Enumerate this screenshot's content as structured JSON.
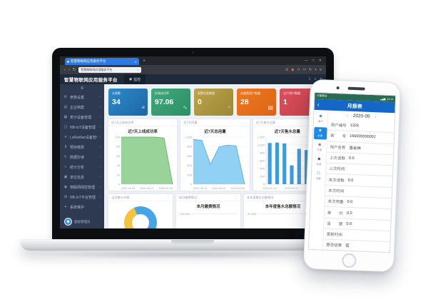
{
  "browser": {
    "tab_title": "智慧物联网应用服务平台",
    "tab_close_glyph": "✕",
    "new_tab_glyph": "+",
    "window_controls": [
      {
        "name": "minimize-icon",
        "glyph": "—"
      },
      {
        "name": "maximize-icon",
        "glyph": "□"
      },
      {
        "name": "close-icon",
        "glyph": "✕"
      }
    ],
    "nav_back": "‹",
    "nav_forward": "›",
    "nav_refresh": "↻",
    "address_text": "智慧物联网应用服务平台",
    "address_star": "☆",
    "toolbar_icons": [
      {
        "name": "search-icon",
        "glyph": "⊙",
        "color": "#b9bcc2"
      },
      {
        "name": "extension-icon",
        "glyph": "◉",
        "color": "#ff7a2f"
      },
      {
        "name": "favorites-icon",
        "glyph": "✩",
        "color": "#b9bcc2"
      },
      {
        "name": "clip-icon",
        "glyph": "✂",
        "color": "#b9bcc2"
      },
      {
        "name": "history-icon",
        "glyph": "↻",
        "color": "#b9bcc2"
      },
      {
        "name": "add-icon",
        "glyph": "+",
        "color": "#b9bcc2"
      },
      {
        "name": "menu-icon",
        "glyph": "≡",
        "color": "#b9bcc2"
      }
    ]
  },
  "app_header": {
    "title": "智慧物联网应用服务平台",
    "chip_icon": "▣",
    "chip_label": "监控",
    "right_icons": [
      {
        "name": "download-icon",
        "glyph": "↧"
      },
      {
        "name": "chevron-down-icon",
        "glyph": "∨"
      },
      {
        "name": "close-icon",
        "glyph": "✕"
      }
    ]
  },
  "sidebar": {
    "collapse_glyph": "≡",
    "arrow_glyph": "‹",
    "items": [
      {
        "label": "参数设置",
        "glyph": "⚙",
        "icon_name": "gear-icon"
      },
      {
        "label": "企业档案",
        "glyph": "▤",
        "icon_name": "folder-icon"
      },
      {
        "label": "表计设备管理",
        "glyph": "▦",
        "icon_name": "meter-icon"
      },
      {
        "label": "NB-IoT设备管理",
        "glyph": "◫",
        "icon_name": "device-icon"
      },
      {
        "label": "LoRaWan设备管理",
        "glyph": "≋",
        "icon_name": "signal-icon"
      },
      {
        "label": "预存缴费",
        "glyph": "$",
        "icon_name": "payment-icon"
      },
      {
        "label": "数据抄读",
        "glyph": "↻",
        "icon_name": "read-data-icon"
      },
      {
        "label": "统计分析",
        "glyph": "∿",
        "icon_name": "chart-icon"
      },
      {
        "label": "单位信息",
        "glyph": "▣",
        "icon_name": "org-icon"
      },
      {
        "label": "物联网阀控管理",
        "glyph": "◉",
        "icon_name": "valve-icon"
      },
      {
        "label": "NB-IoT平台管理",
        "glyph": "⊞",
        "icon_name": "platform-icon"
      },
      {
        "label": "系统维护",
        "glyph": "✦",
        "icon_name": "maintenance-icon"
      }
    ],
    "user_name": "超级管理员",
    "user_glyph": "☻"
  },
  "stat_cards": [
    {
      "label": "水表数",
      "value": "34",
      "bg": "linear-gradient(135deg,#2e8ac9,#1d66a6)",
      "glyph": "≡",
      "icon_name": "list-icon"
    },
    {
      "label": "抄表成功率",
      "value": "97.06",
      "bg": "linear-gradient(135deg,#3fa87c,#2c8f65)",
      "glyph": "∿",
      "icon_name": "pulse-icon"
    },
    {
      "label": "报警信息数量",
      "value": "0",
      "bg": "linear-gradient(135deg,#bca44a,#9b8836)",
      "glyph": "◔",
      "icon_name": "clock-icon"
    },
    {
      "label": "未缴费用户数量",
      "value": "28",
      "bg": "linear-gradient(135deg,#ec7a21,#dd6314)",
      "glyph": "▤",
      "icon_name": "bill-icon"
    },
    {
      "label": "立户用户数量",
      "value": "1",
      "bg": "linear-gradient(135deg,#d8505a,#c9404e)",
      "glyph": "☻",
      "icon_name": "user-icon"
    }
  ],
  "chart_data": [
    {
      "type": "area",
      "panel_header": "近7天上线成功率",
      "title": "近7天上线成功率",
      "x": [
        "2020-09-24",
        "2020-09-25",
        "2020-09-26",
        "2020-09-27",
        "2020-09-28",
        "2020-09-29",
        "2020-09-30"
      ],
      "values": [
        100,
        100,
        100,
        100,
        100,
        98,
        0
      ],
      "ylim": [
        0,
        100
      ],
      "yticks": [
        0,
        20,
        40,
        60,
        80,
        100
      ],
      "x_shown": [
        "2020-09-24",
        "2020-09-27",
        "2020-09-30"
      ],
      "fill": "#8fce8f",
      "stroke": "#57b457"
    },
    {
      "type": "area",
      "panel_header": "近7天用量",
      "title": "近7天总用量",
      "x": [
        "2020-09-24",
        "2020-09-25",
        "2020-09-26",
        "2020-09-27",
        "2020-09-28",
        "2020-09-29",
        "2020-09-30"
      ],
      "values": [
        950,
        930,
        420,
        790,
        830,
        815,
        0
      ],
      "ylim": [
        0,
        1000
      ],
      "yticks": [
        0,
        200,
        400,
        600,
        800,
        1000
      ],
      "x_shown": [
        "2020-09-24",
        "2020-09-27",
        "2020-09-30"
      ],
      "fill": "#85ccf2",
      "stroke": "#46a7e8"
    },
    {
      "type": "bar",
      "panel_header": "近7天售水总量",
      "title": "近7天售水总量",
      "x": [
        "2020-09-24",
        "2020-09-25",
        "2020-09-26",
        "2020-09-27",
        "2020-09-28",
        "2020-09-29",
        "2020-09-30"
      ],
      "values": [
        1050,
        1060,
        1040,
        480,
        900,
        870,
        830
      ],
      "ylim": [
        0,
        1200
      ],
      "yticks": [
        0,
        200,
        400,
        600,
        800,
        1000,
        1200
      ],
      "x_shown": [
        "2020-09-24",
        "2020-09-27"
      ],
      "bar_color": "#3e9be0"
    },
    {
      "type": "pie",
      "panel_header": "当月售水详情",
      "title": "当月售水详情",
      "values": [
        38,
        62
      ],
      "colors": [
        "#f5c242",
        "#46a5e6"
      ],
      "donut": true
    },
    {
      "type": "line",
      "panel_header": "本月缴费情况",
      "title": "本月缴费情况",
      "ytick": "128,000"
    },
    {
      "type": "line",
      "panel_header": "本年度售水总额情况",
      "title": "本年度售水总额情况",
      "ytick": "40,800"
    }
  ],
  "panel_menu_glyph": "⋮",
  "phone": {
    "status": {
      "carrier": "中国移动",
      "signal_glyph": "▂▄▆",
      "time": "12:14"
    },
    "nav": {
      "back_glyph": "‹",
      "title": "月报表"
    },
    "date_nav": {
      "prev": "‹",
      "label": "2020-09",
      "next": "›"
    },
    "rail": [
      {
        "label": "用户",
        "glyph": "☻",
        "color": "#3b8de0",
        "icon_name": "user-icon",
        "selected": false
      },
      {
        "label": "水表",
        "glyph": "☻",
        "color": "#ffd75e",
        "icon_name": "water-meter-icon",
        "selected": true
      },
      {
        "label": "气表",
        "glyph": "☻",
        "color": "#e05a4e",
        "icon_name": "gas-meter-icon",
        "selected": false
      },
      {
        "label": "热表",
        "glyph": "☻",
        "color": "#3a4a5a",
        "icon_name": "heat-meter-icon",
        "selected": false
      },
      {
        "label": "月报",
        "glyph": "☷",
        "color": "#9aa4ad",
        "icon_name": "report-icon",
        "selected": false
      }
    ],
    "fields": [
      {
        "label": "用户编号",
        "value": "1326"
      },
      {
        "label": "表　　号",
        "value": "196000000052"
      },
      {
        "label": "用户名称",
        "value": "香会林"
      },
      {
        "label": "上次读数",
        "value": "0.0"
      },
      {
        "label": "上次时间",
        "value": ""
      },
      {
        "label": "本次读数",
        "value": "0.0"
      },
      {
        "label": "本次时间",
        "value": ""
      },
      {
        "label": "本次用量",
        "value": "0.0"
      },
      {
        "label": "单　　价",
        "value": "0.0"
      },
      {
        "label": "金　　额",
        "value": "0.0"
      },
      {
        "label": "更新时间",
        "value": ""
      },
      {
        "label": "是否结算",
        "value": "否"
      }
    ]
  }
}
